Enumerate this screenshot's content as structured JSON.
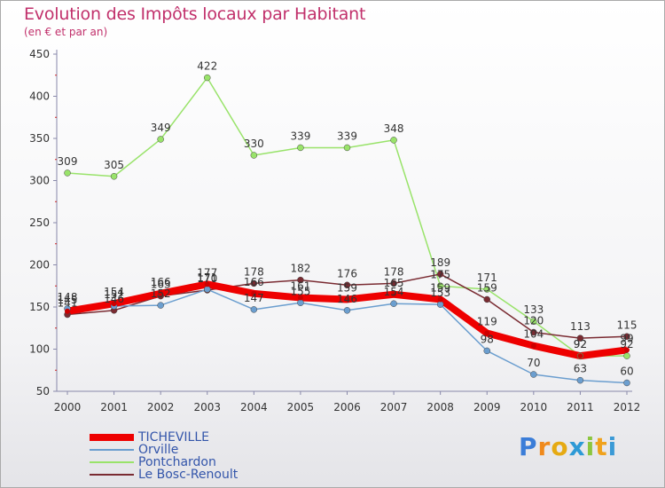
{
  "header": {
    "title": "Evolution des Impôts locaux par Habitant",
    "subtitle": "(en € et par an)"
  },
  "brand": {
    "letters": [
      "P",
      "r",
      "o",
      "x",
      "i",
      "t",
      "i"
    ],
    "colors": [
      "#3b7dd8",
      "#f08a1c",
      "#e6aa12",
      "#2d9ad6",
      "#8cc63f",
      "#f0a21c",
      "#3b9ad6"
    ]
  },
  "chart_data": {
    "type": "line",
    "title": "Evolution des Impôts locaux par Habitant",
    "subtitle": "(en € et par an)",
    "xlabel": "",
    "ylabel": "",
    "x": [
      "2000",
      "2001",
      "2002",
      "2003",
      "2004",
      "2005",
      "2006",
      "2007",
      "2008",
      "2009",
      "2010",
      "2011",
      "2012"
    ],
    "yticks": [
      50,
      100,
      150,
      200,
      250,
      300,
      350,
      400,
      450
    ],
    "ylim": [
      50,
      450
    ],
    "grid": false,
    "legend_position": "bottom-left",
    "series": [
      {
        "name": "TICHEVILLE",
        "color": "#ee0000",
        "values": [
          145,
          154,
          166,
          177,
          166,
          161,
          159,
          165,
          159,
          119,
          104,
          92,
          99
        ]
      },
      {
        "name": "Orville",
        "color": "#6b9ecf",
        "values": [
          148,
          151,
          152,
          171,
          147,
          155,
          146,
          154,
          153,
          98,
          70,
          63,
          60
        ]
      },
      {
        "name": "Pontchardon",
        "color": "#99e36a",
        "values": [
          309,
          305,
          349,
          422,
          330,
          339,
          339,
          348,
          175,
          171,
          133,
          92,
          92
        ]
      },
      {
        "name": "Le Bosc-Renoult",
        "color": "#7a2b32",
        "values": [
          141,
          146,
          163,
          170,
          178,
          182,
          176,
          178,
          189,
          159,
          120,
          113,
          115
        ]
      }
    ],
    "point_labels": [
      {
        "series": "TICHEVILLE",
        "labels": [
          "145",
          "154",
          "166",
          "177",
          "166",
          "161",
          "159",
          "165",
          "159",
          "119",
          "104",
          "92",
          "99"
        ]
      },
      {
        "series": "Orville",
        "labels": [
          "148",
          "151",
          "152",
          "171",
          "147",
          "155",
          "146",
          "154",
          "153",
          "98",
          "70",
          "63",
          "60"
        ]
      },
      {
        "series": "Pontchardon",
        "labels": [
          "309",
          "305",
          "349",
          "422",
          "330",
          "339",
          "339",
          "348",
          "175",
          "171",
          "133",
          "92",
          "92"
        ]
      },
      {
        "series": "Le Bosc-Renoult",
        "labels": [
          "141",
          "146",
          "163",
          "170",
          "178",
          "182",
          "176",
          "178",
          "189",
          "159",
          "120",
          "113",
          "115"
        ]
      }
    ]
  }
}
